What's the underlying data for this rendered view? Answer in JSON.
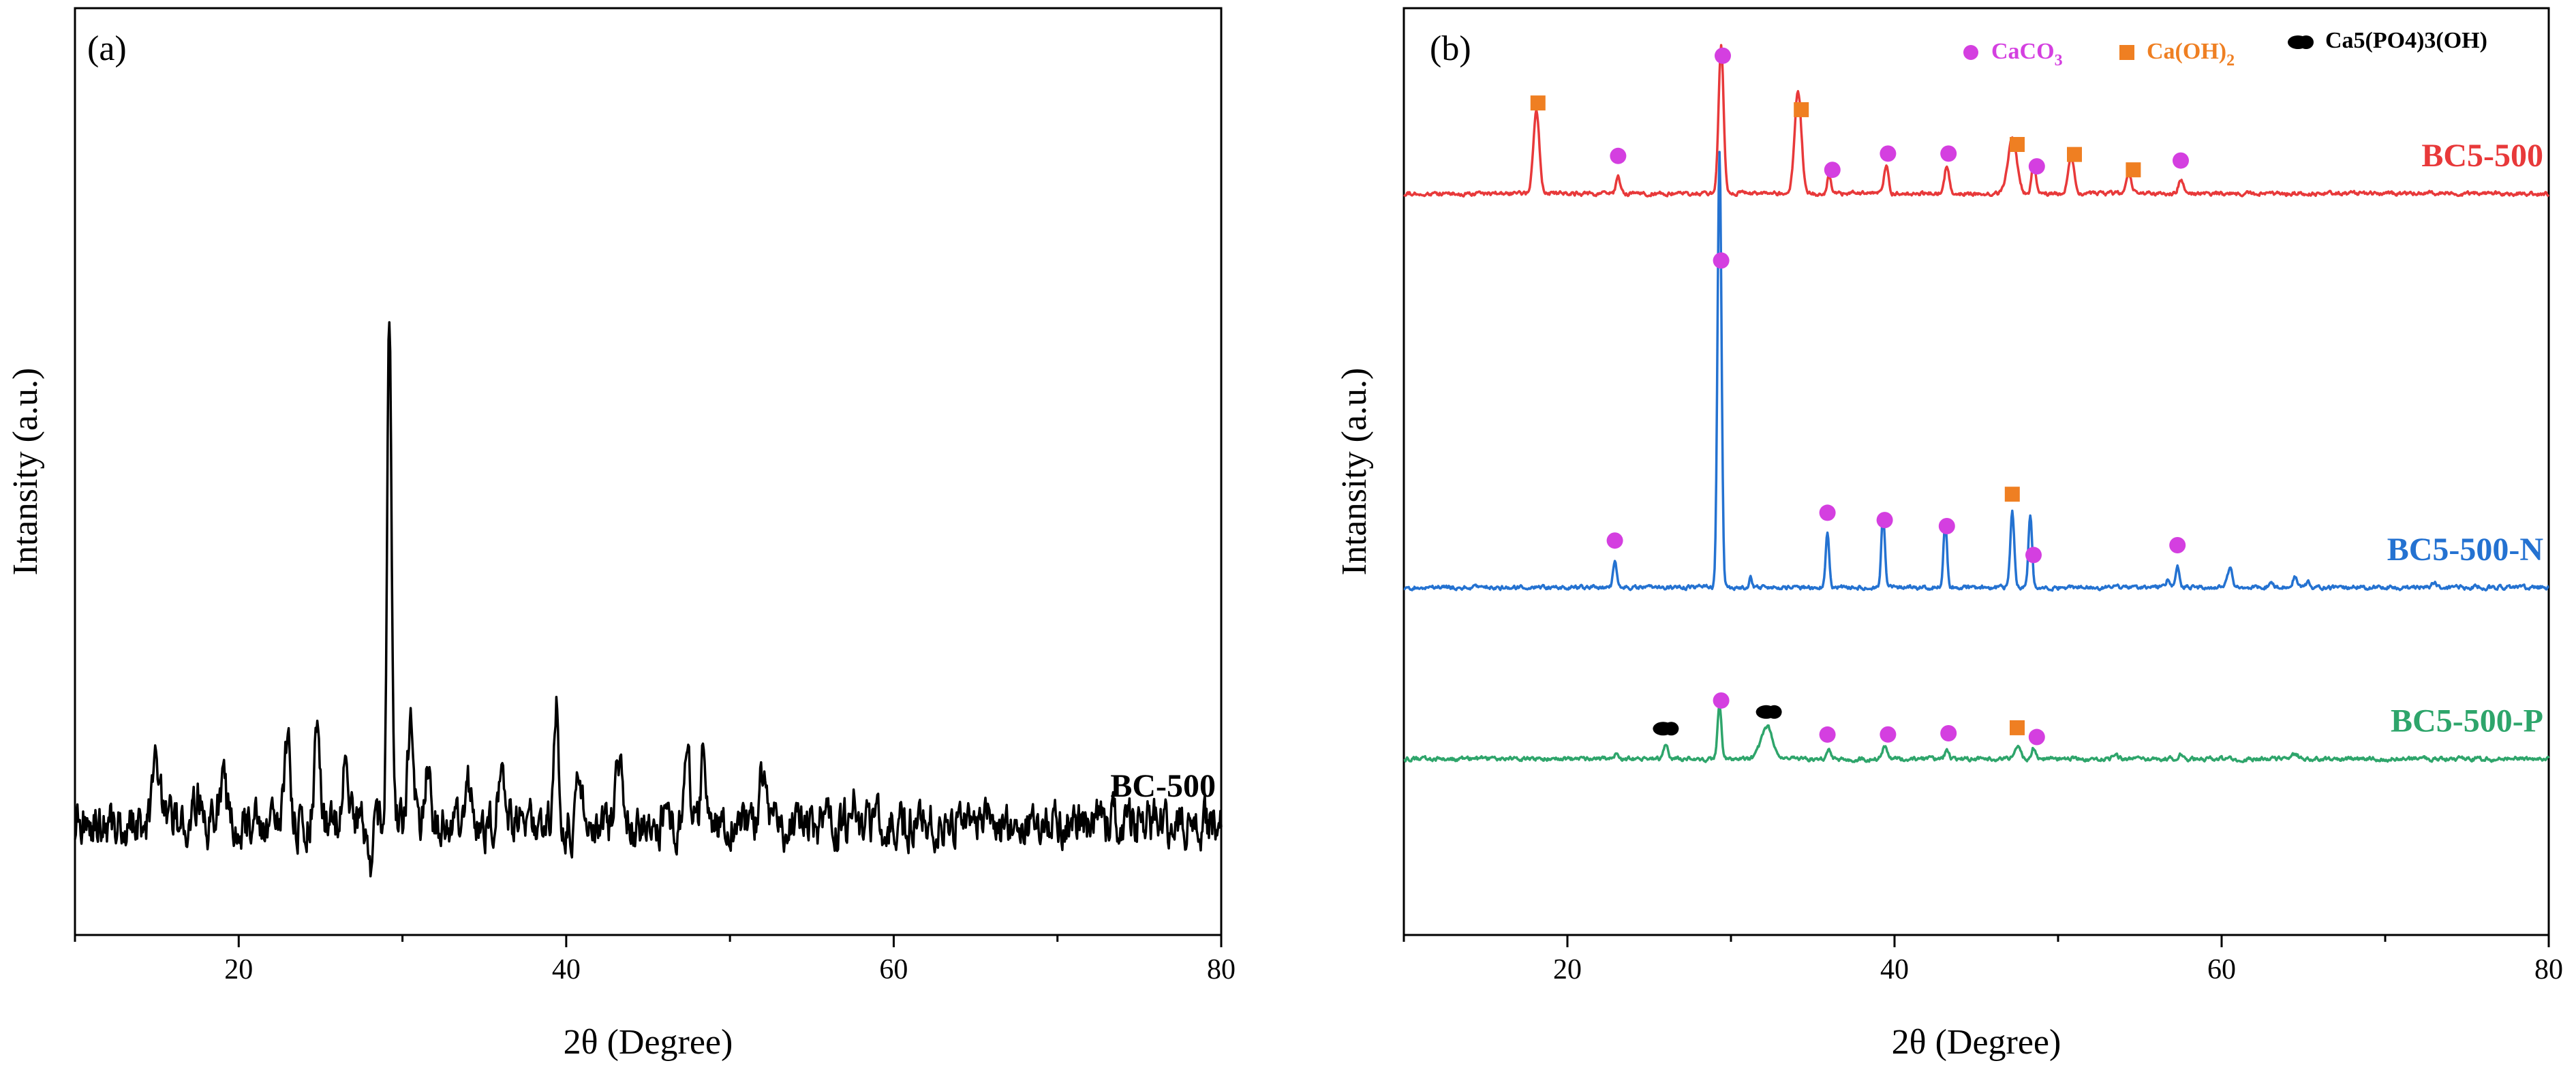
{
  "chart_data": [
    {
      "panel": "(a)",
      "type": "line",
      "xlabel": "2θ (Degree)",
      "ylabel": "Intansity (a.u.)",
      "xlim": [
        10,
        80
      ],
      "xticks": [
        20,
        40,
        60,
        80
      ],
      "series": [
        {
          "name": "BC-500",
          "color": "#000000",
          "baseline": 0.12,
          "noise": 0.022,
          "peaks": [
            [
              15.0,
              0.06,
              0.35
            ],
            [
              17.5,
              0.03,
              0.3
            ],
            [
              19.0,
              0.04,
              0.35
            ],
            [
              23.0,
              0.09,
              0.3
            ],
            [
              24.8,
              0.1,
              0.3
            ],
            [
              26.5,
              0.08,
              0.3
            ],
            [
              28.0,
              -0.05,
              0.25
            ],
            [
              29.2,
              0.55,
              0.22
            ],
            [
              30.5,
              0.1,
              0.3
            ],
            [
              31.5,
              0.06,
              0.3
            ],
            [
              34.0,
              0.04,
              0.3
            ],
            [
              36.0,
              0.05,
              0.3
            ],
            [
              39.4,
              0.13,
              0.25
            ],
            [
              40.8,
              0.06,
              0.25
            ],
            [
              43.2,
              0.07,
              0.3
            ],
            [
              47.4,
              0.08,
              0.28
            ],
            [
              48.4,
              0.07,
              0.28
            ],
            [
              52.0,
              0.05,
              0.35
            ],
            [
              57.5,
              0.03,
              0.3
            ]
          ]
        }
      ]
    },
    {
      "panel": "(b)",
      "type": "line",
      "xlabel": "2θ (Degree)",
      "ylabel": "Intansity (a.u.)",
      "xlim": [
        10,
        80
      ],
      "xticks": [
        20,
        40,
        60,
        80
      ],
      "legend": [
        {
          "label": "CaCO",
          "sub": "3",
          "color": "#d43fe0",
          "marker": "circle"
        },
        {
          "label": "Ca(OH)",
          "sub": "2",
          "color": "#ef7f22",
          "marker": "square"
        },
        {
          "label": "Ca",
          "parts": [
            [
              "5"
            ],
            [
              "(PO"
            ],
            [
              "4"
            ],
            [
              ")"
            ],
            [
              "3"
            ],
            [
              "(OH)"
            ]
          ],
          "color": "#000000",
          "marker": "blob"
        }
      ],
      "legend_text": {
        "hydroxyapatite": "Ca5(PO4)3(OH)"
      },
      "series": [
        {
          "name": "BC5-500",
          "color": "#e8393a",
          "baseline": 0.8,
          "noise": 0.002,
          "peaks": [
            [
              18.1,
              0.09,
              0.3
            ],
            [
              23.1,
              0.02,
              0.2
            ],
            [
              29.4,
              0.16,
              0.25
            ],
            [
              34.1,
              0.11,
              0.35
            ],
            [
              36.0,
              0.02,
              0.2
            ],
            [
              39.5,
              0.03,
              0.22
            ],
            [
              43.2,
              0.03,
              0.22
            ],
            [
              47.2,
              0.06,
              0.45
            ],
            [
              48.5,
              0.035,
              0.2
            ],
            [
              50.8,
              0.04,
              0.3
            ],
            [
              54.3,
              0.02,
              0.3
            ],
            [
              57.5,
              0.015,
              0.25
            ]
          ],
          "markers": [
            [
              "square",
              18.2
            ],
            [
              "circle",
              23.1
            ],
            [
              "circle",
              29.5
            ],
            [
              "square",
              34.3
            ],
            [
              "circle",
              36.2
            ],
            [
              "circle",
              39.6
            ],
            [
              "circle",
              43.3
            ],
            [
              "square",
              47.5
            ],
            [
              "circle",
              48.7
            ],
            [
              "square",
              51.0
            ],
            [
              "square",
              54.6
            ],
            [
              "circle",
              57.5
            ]
          ]
        },
        {
          "name": "BC5-500-N",
          "color": "#2472d1",
          "baseline": 0.375,
          "noise": 0.002,
          "peaks": [
            [
              22.9,
              0.03,
              0.18
            ],
            [
              29.3,
              0.47,
              0.2
            ],
            [
              31.2,
              0.01,
              0.15
            ],
            [
              35.9,
              0.06,
              0.18
            ],
            [
              39.3,
              0.08,
              0.18
            ],
            [
              43.1,
              0.07,
              0.18
            ],
            [
              47.2,
              0.08,
              0.2
            ],
            [
              48.3,
              0.08,
              0.18
            ],
            [
              56.7,
              0.008,
              0.2
            ],
            [
              57.3,
              0.025,
              0.18
            ],
            [
              60.5,
              0.02,
              0.25
            ],
            [
              63.0,
              0.005,
              0.2
            ],
            [
              64.5,
              0.012,
              0.22
            ],
            [
              65.3,
              0.007,
              0.2
            ],
            [
              73.0,
              0.005,
              0.25
            ]
          ],
          "markers": [
            [
              "circle",
              22.9
            ],
            [
              "circle",
              29.4
            ],
            [
              "circle",
              35.9
            ],
            [
              "circle",
              39.4
            ],
            [
              "circle",
              43.2
            ],
            [
              "square",
              47.2
            ],
            [
              "circle",
              48.5
            ],
            [
              "circle",
              57.3
            ]
          ]
        },
        {
          "name": "BC5-500-P",
          "color": "#2ea56b",
          "baseline": 0.19,
          "noise": 0.002,
          "peaks": [
            [
              23.0,
              0.006,
              0.2
            ],
            [
              26.0,
              0.015,
              0.25
            ],
            [
              29.3,
              0.06,
              0.2
            ],
            [
              32.2,
              0.035,
              0.6
            ],
            [
              36.0,
              0.008,
              0.2
            ],
            [
              39.4,
              0.014,
              0.25
            ],
            [
              43.2,
              0.01,
              0.2
            ],
            [
              47.5,
              0.013,
              0.3
            ],
            [
              48.5,
              0.012,
              0.2
            ],
            [
              53.5,
              0.004,
              0.3
            ],
            [
              57.5,
              0.005,
              0.25
            ],
            [
              64.5,
              0.005,
              0.3
            ]
          ],
          "markers": [
            [
              "blob",
              26.1
            ],
            [
              "circle",
              29.4
            ],
            [
              "blob",
              32.4
            ],
            [
              "circle",
              35.9
            ],
            [
              "circle",
              39.6
            ],
            [
              "circle",
              43.3
            ],
            [
              "square",
              47.5
            ],
            [
              "circle",
              48.7
            ]
          ]
        }
      ]
    }
  ]
}
